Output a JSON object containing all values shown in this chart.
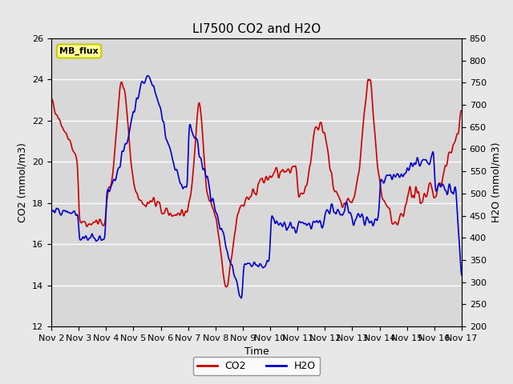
{
  "title": "LI7500 CO2 and H2O",
  "xlabel": "Time",
  "ylabel_left": "CO2 (mmol/m3)",
  "ylabel_right": "H2O (mmol/m3)",
  "co2_ylim": [
    12,
    26
  ],
  "h2o_ylim": [
    200,
    850
  ],
  "co2_yticks": [
    12,
    14,
    16,
    18,
    20,
    22,
    24,
    26
  ],
  "h2o_yticks": [
    200,
    250,
    300,
    350,
    400,
    450,
    500,
    550,
    600,
    650,
    700,
    750,
    800,
    850
  ],
  "xtick_labels": [
    "Nov 2",
    "Nov 3",
    "Nov 4",
    "Nov 5",
    "Nov 6",
    "Nov 7",
    "Nov 8",
    "Nov 9",
    "Nov 10",
    "Nov 11",
    "Nov 12",
    "Nov 13",
    "Nov 14",
    "Nov 15",
    "Nov 16",
    "Nov 17"
  ],
  "n_points": 1500,
  "bg_color": "#e8e8e8",
  "plot_bg_color": "#d8d8d8",
  "grid_color": "#ffffff",
  "co2_color": "#cc0000",
  "h2o_color": "#0000cc",
  "line_width": 1.2,
  "stamp_text": "MB_flux",
  "stamp_bg": "#ffff99",
  "stamp_border": "#cccc00",
  "legend_co2": "CO2",
  "legend_h2o": "H2O"
}
